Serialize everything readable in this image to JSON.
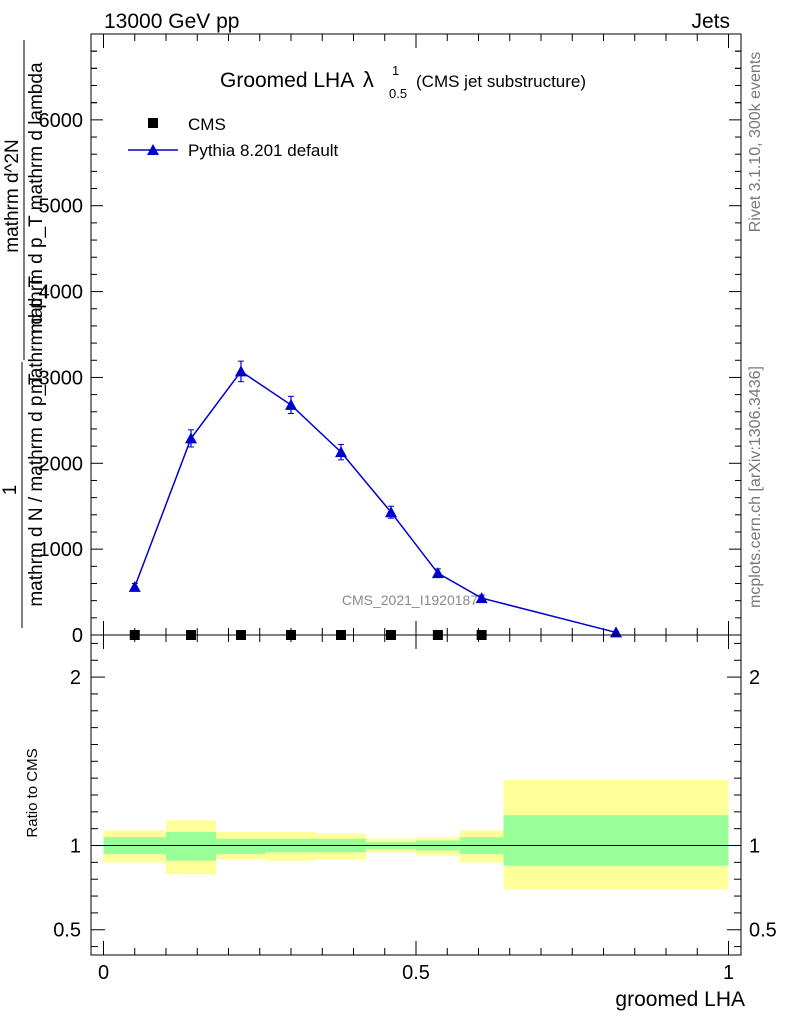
{
  "header": {
    "left": "13000 GeV pp",
    "right": "Jets"
  },
  "side_labels": {
    "rivet": "Rivet 3.1.10,  300k events",
    "mcplots": "mcplots.cern.ch [arXiv:1306.3436]"
  },
  "watermark": "CMS_2021_I1920187",
  "chart_data": [
    {
      "type": "line",
      "title": "Groomed LHA",
      "title_symbol": "λ",
      "title_sup": "1",
      "title_sub": "0.5",
      "title_note": "(CMS jet substructure)",
      "ylabel_numerator": "1",
      "ylabel_denominator": "mathrm d N / mathrm d p_T",
      "ylabel_frac_num": "mathrm d^2N",
      "ylabel_frac_den": "mathrm d p_T mathrm d lambda",
      "ylabel_mathpart": "mathrm d p_T",
      "ylim": [
        0,
        7000
      ],
      "xlim": [
        -0.02,
        1.02
      ],
      "y_ticks": [
        0,
        1000,
        2000,
        3000,
        4000,
        5000,
        6000
      ],
      "y_tick_labels": [
        "0",
        "1000",
        "2000",
        "3000",
        "4000",
        "5000",
        "6000"
      ],
      "legend_position": "top-left",
      "series": [
        {
          "name": "CMS",
          "marker": "square",
          "color": "#000000",
          "x": [
            0.05,
            0.14,
            0.22,
            0.3,
            0.38,
            0.46,
            0.535,
            0.605
          ],
          "y": [
            0,
            0,
            0,
            0,
            0,
            0,
            0,
            0
          ]
        },
        {
          "name": "Pythia 8.201 default",
          "marker": "triangle",
          "color": "#0000cc",
          "x": [
            0.05,
            0.14,
            0.22,
            0.3,
            0.38,
            0.46,
            0.535,
            0.605,
            0.82
          ],
          "y": [
            560,
            2290,
            3070,
            2680,
            2130,
            1430,
            720,
            430,
            30
          ],
          "yerr": [
            40,
            100,
            120,
            100,
            90,
            70,
            50,
            35,
            10
          ]
        }
      ]
    },
    {
      "type": "area",
      "ylabel": "Ratio to CMS",
      "xlabel": "groomed LHA",
      "xlim": [
        -0.02,
        1.02
      ],
      "ylim": [
        0.35,
        2.25
      ],
      "y_ticks": [
        0.5,
        1,
        2
      ],
      "y_tick_labels": [
        "0.5",
        "1",
        "2"
      ],
      "x_ticks": [
        0,
        0.5,
        1
      ],
      "x_tick_labels": [
        "0",
        "0.5",
        "1"
      ],
      "reference_line": 1,
      "band_colors": {
        "inner": "#99ff99",
        "outer": "#ffff99"
      },
      "bins": [
        {
          "x0": 0.0,
          "x1": 0.1,
          "inner": [
            0.95,
            1.05
          ],
          "outer": [
            0.9,
            1.09
          ]
        },
        {
          "x0": 0.1,
          "x1": 0.18,
          "inner": [
            0.91,
            1.08
          ],
          "outer": [
            0.83,
            1.15
          ]
        },
        {
          "x0": 0.18,
          "x1": 0.26,
          "inner": [
            0.95,
            1.04
          ],
          "outer": [
            0.92,
            1.08
          ]
        },
        {
          "x0": 0.26,
          "x1": 0.34,
          "inner": [
            0.96,
            1.04
          ],
          "outer": [
            0.91,
            1.08
          ]
        },
        {
          "x0": 0.34,
          "x1": 0.42,
          "inner": [
            0.96,
            1.04
          ],
          "outer": [
            0.92,
            1.07
          ]
        },
        {
          "x0": 0.42,
          "x1": 0.5,
          "inner": [
            0.98,
            1.02
          ],
          "outer": [
            0.96,
            1.04
          ]
        },
        {
          "x0": 0.5,
          "x1": 0.57,
          "inner": [
            0.97,
            1.03
          ],
          "outer": [
            0.94,
            1.05
          ]
        },
        {
          "x0": 0.57,
          "x1": 0.64,
          "inner": [
            0.95,
            1.05
          ],
          "outer": [
            0.9,
            1.09
          ]
        },
        {
          "x0": 0.64,
          "x1": 1.0,
          "inner": [
            0.88,
            1.18
          ],
          "outer": [
            0.74,
            1.39
          ]
        }
      ]
    }
  ]
}
